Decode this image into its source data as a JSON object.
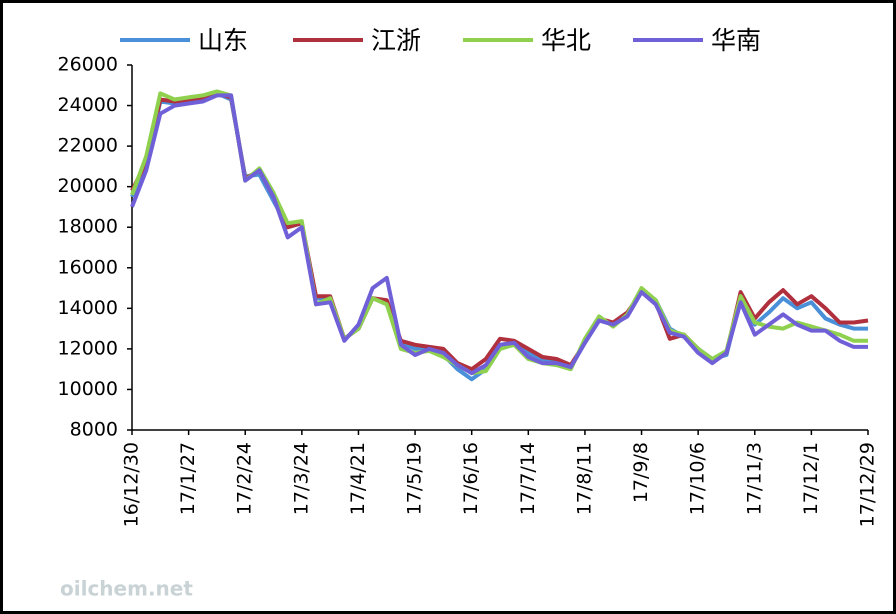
{
  "chart_data": {
    "type": "line",
    "watermark": "oilchem.net",
    "categories": [
      "16/12/30",
      null,
      null,
      null,
      "17/1/27",
      null,
      null,
      null,
      "17/2/24",
      null,
      null,
      null,
      "17/3/24",
      null,
      null,
      null,
      "17/4/21",
      null,
      null,
      null,
      "17/5/19",
      null,
      null,
      null,
      "17/6/16",
      null,
      null,
      null,
      "17/7/14",
      null,
      null,
      null,
      "17/8/11",
      null,
      null,
      null,
      "17/9/8",
      null,
      null,
      null,
      "17/10/6",
      null,
      null,
      null,
      "17/11/3",
      null,
      null,
      null,
      "17/12/1",
      null,
      null,
      null,
      "17/12/29"
    ],
    "series": [
      {
        "name": "山东",
        "color": "#4a90d9",
        "values": [
          19500,
          21000,
          24200,
          24100,
          24200,
          24300,
          24600,
          24300,
          20500,
          20600,
          19300,
          18000,
          18200,
          14500,
          14400,
          12500,
          13000,
          14500,
          14200,
          12300,
          12000,
          12000,
          11700,
          11000,
          10500,
          11000,
          12200,
          12300,
          11800,
          11500,
          11400,
          11100,
          12300,
          13400,
          13200,
          13700,
          14900,
          14400,
          13000,
          12600,
          12000,
          11500,
          11700,
          14500,
          13200,
          13800,
          14500,
          14000,
          14300,
          13500,
          13200,
          13000,
          13000
        ]
      },
      {
        "name": "江浙",
        "color": "#b0303e",
        "values": [
          19800,
          21200,
          24300,
          24200,
          24300,
          24400,
          24600,
          24400,
          20400,
          20800,
          19500,
          18000,
          18200,
          14600,
          14600,
          12500,
          13000,
          14500,
          14400,
          12400,
          12200,
          12100,
          12000,
          11300,
          11000,
          11500,
          12500,
          12400,
          12000,
          11600,
          11500,
          11200,
          12300,
          13500,
          13300,
          13800,
          14800,
          14300,
          12500,
          12700,
          12000,
          11400,
          11800,
          14800,
          13500,
          14300,
          14900,
          14200,
          14600,
          14000,
          13300,
          13300,
          13400
        ]
      },
      {
        "name": "华北",
        "color": "#8fd14f",
        "values": [
          19600,
          21500,
          24600,
          24300,
          24400,
          24500,
          24700,
          24500,
          20300,
          20900,
          19700,
          18200,
          18300,
          14200,
          14500,
          12500,
          13000,
          14500,
          14200,
          12000,
          11800,
          11900,
          11600,
          11200,
          10800,
          10900,
          12000,
          12200,
          11500,
          11300,
          11200,
          11000,
          12500,
          13600,
          13100,
          13700,
          15000,
          14400,
          12900,
          12700,
          12000,
          11500,
          11900,
          14600,
          13300,
          13100,
          13000,
          13300,
          13100,
          12900,
          12700,
          12400,
          12400
        ]
      },
      {
        "name": "华南",
        "color": "#7060d8",
        "values": [
          19000,
          20800,
          23600,
          24000,
          24100,
          24200,
          24500,
          24500,
          20300,
          20800,
          19500,
          17500,
          18000,
          14200,
          14300,
          12400,
          13200,
          15000,
          15500,
          12200,
          11700,
          12000,
          11800,
          11200,
          10800,
          11200,
          12200,
          12300,
          11600,
          11300,
          11300,
          11100,
          12300,
          13400,
          13200,
          13600,
          14800,
          14200,
          12800,
          12600,
          11800,
          11300,
          11800,
          14300,
          12700,
          13200,
          13700,
          13200,
          12900,
          12900,
          12400,
          12100,
          12100
        ]
      }
    ],
    "ylim": [
      8000,
      26000
    ],
    "yticks": [
      8000,
      10000,
      12000,
      14000,
      16000,
      18000,
      20000,
      22000,
      24000,
      26000
    ]
  }
}
